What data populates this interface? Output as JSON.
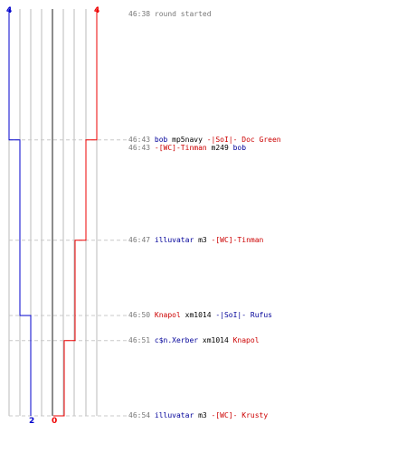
{
  "colors": {
    "blue_team": "#0000cc",
    "red_team": "#ee0000",
    "grid": "#bbbbbb",
    "divider": "#666666",
    "timestamp": "#777777",
    "dash": "#c8c8c8"
  },
  "score": {
    "blue_start": "4",
    "red_start": "4",
    "blue_end": "2",
    "red_end": "0"
  },
  "events": [
    {
      "time": "46:38",
      "parts": [
        {
          "text": "round started",
          "color": "grey"
        }
      ]
    },
    {
      "time": "46:43",
      "parts": [
        {
          "text": "bob",
          "color": "blue"
        },
        {
          "text": " mp5navy ",
          "color": "black"
        },
        {
          "text": "-|SoI|- Doc Green",
          "color": "red"
        }
      ]
    },
    {
      "time": "46:43",
      "parts": [
        {
          "text": "-[WC]-Tinman",
          "color": "red"
        },
        {
          "text": " m249 ",
          "color": "black"
        },
        {
          "text": "bob",
          "color": "blue"
        }
      ]
    },
    {
      "time": "46:47",
      "parts": [
        {
          "text": "illuvatar",
          "color": "blue"
        },
        {
          "text": " m3 ",
          "color": "black"
        },
        {
          "text": "-[WC]-Tinman",
          "color": "red"
        }
      ]
    },
    {
      "time": "46:50",
      "parts": [
        {
          "text": "Knapol",
          "color": "red"
        },
        {
          "text": " xm1014 ",
          "color": "black"
        },
        {
          "text": "-|SoI|- Rufus",
          "color": "blue"
        }
      ]
    },
    {
      "time": "46:51",
      "parts": [
        {
          "text": "c$n.Xerber",
          "color": "blue"
        },
        {
          "text": " xm1014 ",
          "color": "black"
        },
        {
          "text": "Knapol",
          "color": "red"
        }
      ]
    },
    {
      "time": "46:54",
      "parts": [
        {
          "text": "illuvatar",
          "color": "blue"
        },
        {
          "text": " m3 ",
          "color": "black"
        },
        {
          "text": "-[WC]- Krusty",
          "color": "red"
        }
      ]
    }
  ],
  "chart_data": {
    "type": "line",
    "x": [
      "46:38",
      "46:43",
      "46:47",
      "46:50",
      "46:51",
      "46:54"
    ],
    "series": [
      {
        "values": [
          4,
          3,
          3,
          2,
          2,
          2
        ]
      },
      {
        "values": [
          4,
          3,
          2,
          2,
          1,
          0
        ]
      }
    ]
  }
}
